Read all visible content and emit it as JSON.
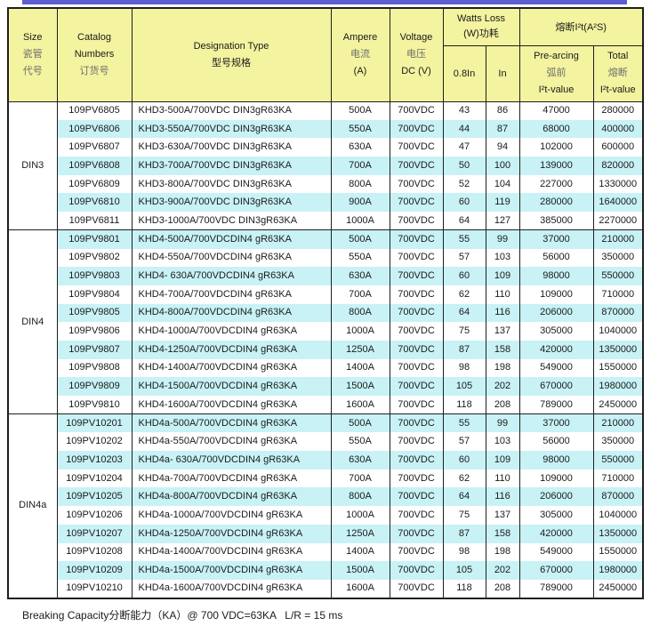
{
  "theme": {
    "top_bar_color": "#5d5dcf",
    "header_bg": "#f3f3a0",
    "row_alt_bg": "#c8f2f5",
    "border_color": "#1f1f1f"
  },
  "header": {
    "size": [
      "Size",
      "瓷管",
      "代号"
    ],
    "catalog": [
      "Catalog",
      "Numbers",
      "订货号"
    ],
    "designation": [
      "Designation Type",
      "型号规格"
    ],
    "ampere": [
      "Ampere",
      "电流",
      "(A)"
    ],
    "voltage": [
      "Voltage",
      "电压",
      "DC (V)"
    ],
    "watts_loss": [
      "Watts Loss",
      "(W)功耗"
    ],
    "watts_sub": [
      "0.8In",
      "In"
    ],
    "i2t_title": "熔断I²t(A²S)",
    "prearcing": [
      "Pre-arcing",
      "弧前",
      "I²t-value"
    ],
    "total": [
      "Total",
      "熔断",
      "I²t-value"
    ]
  },
  "sections": [
    {
      "size": "DIN3",
      "rows": [
        [
          "109PV6805",
          "KHD3-500A/700VDC DIN3gR63KA",
          "500A",
          "700VDC",
          "43",
          "86",
          "47000",
          "280000"
        ],
        [
          "109PV6806",
          "KHD3-550A/700VDC DIN3gR63KA",
          "550A",
          "700VDC",
          "44",
          "87",
          "68000",
          "400000"
        ],
        [
          "109PV6807",
          "KHD3-630A/700VDC DIN3gR63KA",
          "630A",
          "700VDC",
          "47",
          "94",
          "102000",
          "600000"
        ],
        [
          "109PV6808",
          "KHD3-700A/700VDC DIN3gR63KA",
          "700A",
          "700VDC",
          "50",
          "100",
          "139000",
          "820000"
        ],
        [
          "109PV6809",
          "KHD3-800A/700VDC DIN3gR63KA",
          "800A",
          "700VDC",
          "52",
          "104",
          "227000",
          "1330000"
        ],
        [
          "109PV6810",
          "KHD3-900A/700VDC DIN3gR63KA",
          "900A",
          "700VDC",
          "60",
          "119",
          "280000",
          "1640000"
        ],
        [
          "109PV6811",
          "KHD3-1000A/700VDC DIN3gR63KA",
          "1000A",
          "700VDC",
          "64",
          "127",
          "385000",
          "2270000"
        ]
      ]
    },
    {
      "size": "DIN4",
      "rows": [
        [
          "109PV9801",
          "KHD4-500A/700VDCDIN4 gR63KA",
          "500A",
          "700VDC",
          "55",
          "99",
          "37000",
          "210000"
        ],
        [
          "109PV9802",
          "KHD4-550A/700VDCDIN4 gR63KA",
          "550A",
          "700VDC",
          "57",
          "103",
          "56000",
          "350000"
        ],
        [
          "109PV9803",
          "KHD4- 630A/700VDCDIN4 gR63KA",
          "630A",
          "700VDC",
          "60",
          "109",
          "98000",
          "550000"
        ],
        [
          "109PV9804",
          "KHD4-700A/700VDCDIN4 gR63KA",
          "700A",
          "700VDC",
          "62",
          "110",
          "109000",
          "710000"
        ],
        [
          "109PV9805",
          "KHD4-800A/700VDCDIN4 gR63KA",
          "800A",
          "700VDC",
          "64",
          "116",
          "206000",
          "870000"
        ],
        [
          "109PV9806",
          "KHD4-1000A/700VDCDIN4 gR63KA",
          "1000A",
          "700VDC",
          "75",
          "137",
          "305000",
          "1040000"
        ],
        [
          "109PV9807",
          "KHD4-1250A/700VDCDIN4 gR63KA",
          "1250A",
          "700VDC",
          "87",
          "158",
          "420000",
          "1350000"
        ],
        [
          "109PV9808",
          "KHD4-1400A/700VDCDIN4 gR63KA",
          "1400A",
          "700VDC",
          "98",
          "198",
          "549000",
          "1550000"
        ],
        [
          "109PV9809",
          "KHD4-1500A/700VDCDIN4 gR63KA",
          "1500A",
          "700VDC",
          "105",
          "202",
          "670000",
          "1980000"
        ],
        [
          "109PV9810",
          "KHD4-1600A/700VDCDIN4 gR63KA",
          "1600A",
          "700VDC",
          "118",
          "208",
          "789000",
          "2450000"
        ]
      ]
    },
    {
      "size": "DIN4a",
      "rows": [
        [
          "109PV10201",
          "KHD4a-500A/700VDCDIN4 gR63KA",
          "500A",
          "700VDC",
          "55",
          "99",
          "37000",
          "210000"
        ],
        [
          "109PV10202",
          "KHD4a-550A/700VDCDIN4 gR63KA",
          "550A",
          "700VDC",
          "57",
          "103",
          "56000",
          "350000"
        ],
        [
          "109PV10203",
          "KHD4a- 630A/700VDCDIN4 gR63KA",
          "630A",
          "700VDC",
          "60",
          "109",
          "98000",
          "550000"
        ],
        [
          "109PV10204",
          "KHD4a-700A/700VDCDIN4 gR63KA",
          "700A",
          "700VDC",
          "62",
          "110",
          "109000",
          "710000"
        ],
        [
          "109PV10205",
          "KHD4a-800A/700VDCDIN4 gR63KA",
          "800A",
          "700VDC",
          "64",
          "116",
          "206000",
          "870000"
        ],
        [
          "109PV10206",
          "KHD4a-1000A/700VDCDIN4 gR63KA",
          "1000A",
          "700VDC",
          "75",
          "137",
          "305000",
          "1040000"
        ],
        [
          "109PV10207",
          "KHD4a-1250A/700VDCDIN4 gR63KA",
          "1250A",
          "700VDC",
          "87",
          "158",
          "420000",
          "1350000"
        ],
        [
          "109PV10208",
          "KHD4a-1400A/700VDCDIN4 gR63KA",
          "1400A",
          "700VDC",
          "98",
          "198",
          "549000",
          "1550000"
        ],
        [
          "109PV10209",
          "KHD4a-1500A/700VDCDIN4 gR63KA",
          "1500A",
          "700VDC",
          "105",
          "202",
          "670000",
          "1980000"
        ],
        [
          "109PV10210",
          "KHD4a-1600A/700VDCDIN4 gR63KA",
          "1600A",
          "700VDC",
          "118",
          "208",
          "789000",
          "2450000"
        ]
      ]
    }
  ],
  "footer": {
    "note": "Breaking Capacity分断能力（KA）@ 700 VDC=63KA   L/R = 15 ms"
  }
}
